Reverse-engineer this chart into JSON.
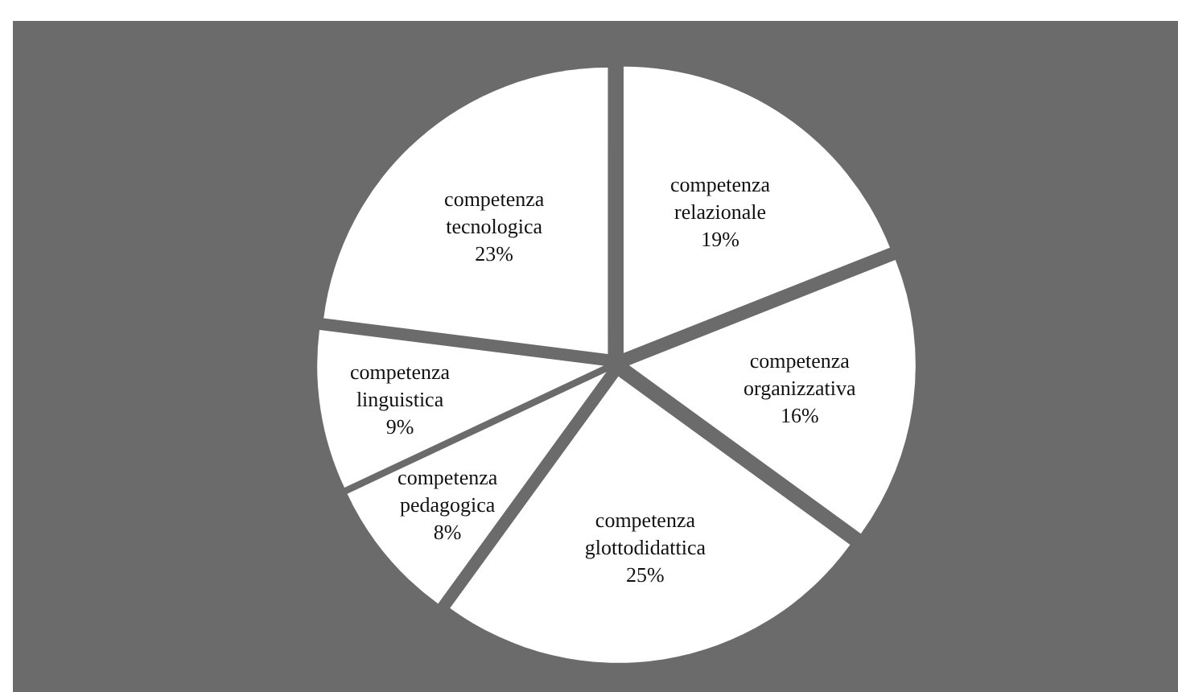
{
  "chart_data": {
    "type": "pie",
    "categories": [
      "competenza relazionale",
      "competenza organizzativa",
      "competenza glottodidattica",
      "competenza pedagogica",
      "competenza linguistica",
      "competenza tecnologica"
    ],
    "values": [
      19,
      16,
      25,
      8,
      9,
      23
    ],
    "colors": [
      "#ffffff",
      "#ffffff",
      "#ffffff",
      "#ffffff",
      "#ffffff",
      "#ffffff"
    ],
    "value_labels": [
      "19%",
      "16%",
      "25%",
      "8%",
      "9%",
      "23%"
    ]
  }
}
